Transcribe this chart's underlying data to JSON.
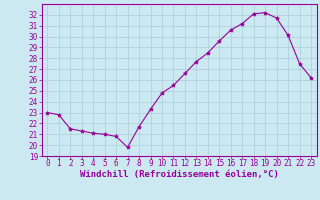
{
  "x": [
    0,
    1,
    2,
    3,
    4,
    5,
    6,
    7,
    8,
    9,
    10,
    11,
    12,
    13,
    14,
    15,
    16,
    17,
    18,
    19,
    20,
    21,
    22,
    23
  ],
  "y": [
    23.0,
    22.8,
    21.5,
    21.3,
    21.1,
    21.0,
    20.8,
    19.8,
    21.7,
    23.3,
    24.8,
    25.5,
    26.6,
    27.7,
    28.5,
    29.6,
    30.6,
    31.2,
    32.1,
    32.2,
    31.7,
    30.1,
    27.5,
    26.2
  ],
  "line_color": "#990099",
  "marker": "*",
  "marker_size": 3,
  "bg_color": "#cce8f0",
  "grid_color": "#aaccdd",
  "xlabel": "Windchill (Refroidissement éolien,°C)",
  "xlabel_color": "#990099",
  "tick_color": "#990099",
  "ylim": [
    19,
    33
  ],
  "xlim": [
    -0.5,
    23.5
  ],
  "yticks": [
    19,
    20,
    21,
    22,
    23,
    24,
    25,
    26,
    27,
    28,
    29,
    30,
    31,
    32
  ],
  "xticks": [
    0,
    1,
    2,
    3,
    4,
    5,
    6,
    7,
    8,
    9,
    10,
    11,
    12,
    13,
    14,
    15,
    16,
    17,
    18,
    19,
    20,
    21,
    22,
    23
  ],
  "spine_color": "#990099",
  "tick_fontsize": 5.5,
  "xlabel_fontsize": 6.5
}
